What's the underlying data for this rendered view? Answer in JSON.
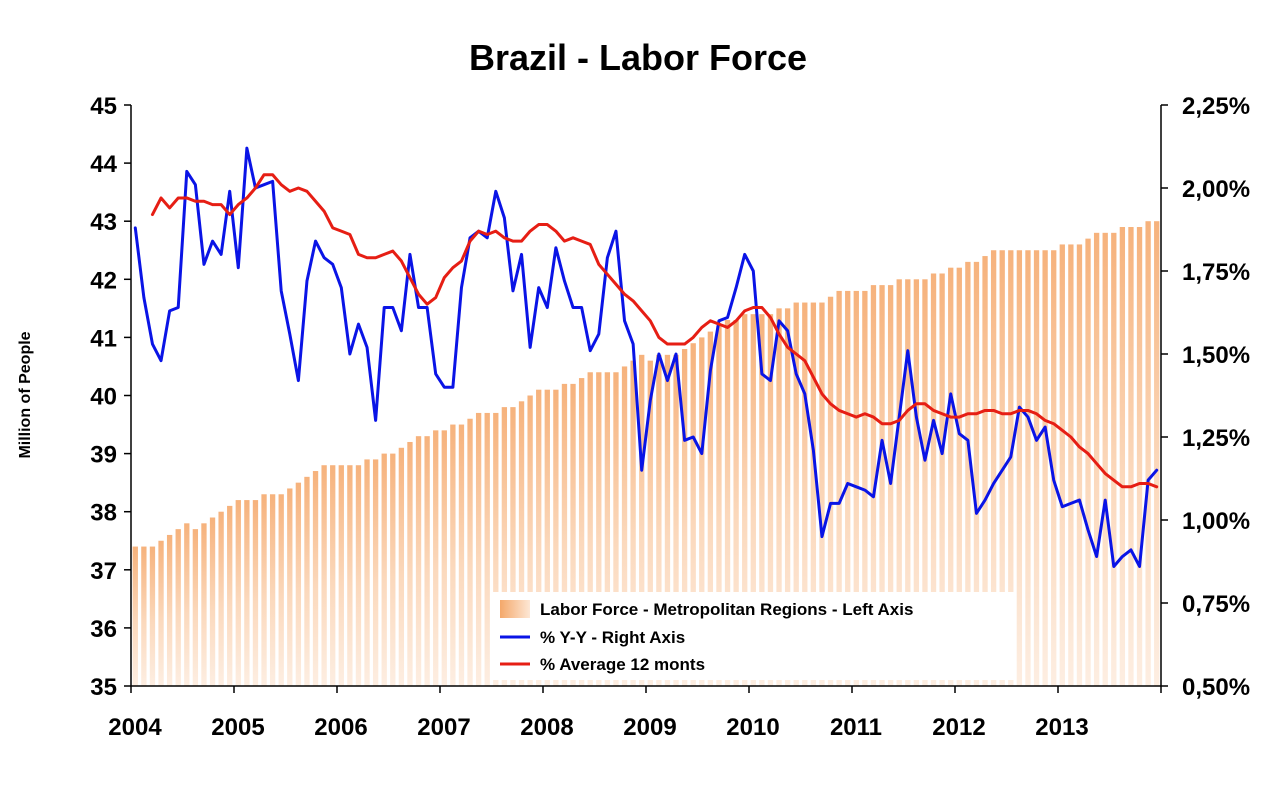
{
  "chart_data": {
    "type": "bar",
    "title": "Brazil - Labor Force",
    "ylabel": "Million of People",
    "xlabel": "",
    "x_tick_labels": [
      "2004",
      "2005",
      "2006",
      "2007",
      "2008",
      "2009",
      "2010",
      "2011",
      "2012",
      "2013"
    ],
    "y_left": {
      "min": 35,
      "max": 45,
      "ticks": [
        "35",
        "36",
        "37",
        "38",
        "39",
        "40",
        "41",
        "42",
        "43",
        "44",
        "45"
      ]
    },
    "y_right": {
      "min": 0.5,
      "max": 2.25,
      "ticks": [
        "0,50%",
        "0,75%",
        "1,00%",
        "1,25%",
        "1,50%",
        "1,75%",
        "2,00%",
        "2,25%"
      ]
    },
    "start": "2004-01",
    "grid": false,
    "legend_position": "bottom-center",
    "series": [
      {
        "name": "Labor Force - Metropolitan Regions - Left Axis",
        "type": "bar",
        "axis": "left",
        "color": "#f5b888",
        "values": [
          37.4,
          37.4,
          37.4,
          37.5,
          37.6,
          37.7,
          37.8,
          37.7,
          37.8,
          37.9,
          38.0,
          38.1,
          38.2,
          38.2,
          38.2,
          38.3,
          38.3,
          38.3,
          38.4,
          38.5,
          38.6,
          38.7,
          38.8,
          38.8,
          38.8,
          38.8,
          38.8,
          38.9,
          38.9,
          39.0,
          39.0,
          39.1,
          39.2,
          39.3,
          39.3,
          39.4,
          39.4,
          39.5,
          39.5,
          39.6,
          39.7,
          39.7,
          39.7,
          39.8,
          39.8,
          39.9,
          40.0,
          40.1,
          40.1,
          40.1,
          40.2,
          40.2,
          40.3,
          40.4,
          40.4,
          40.4,
          40.4,
          40.5,
          40.6,
          40.7,
          40.6,
          40.7,
          40.7,
          40.7,
          40.8,
          40.9,
          41.0,
          41.1,
          41.2,
          41.3,
          41.3,
          41.4,
          41.4,
          41.4,
          41.4,
          41.5,
          41.5,
          41.6,
          41.6,
          41.6,
          41.6,
          41.7,
          41.8,
          41.8,
          41.8,
          41.8,
          41.9,
          41.9,
          41.9,
          42.0,
          42.0,
          42.0,
          42.0,
          42.1,
          42.1,
          42.2,
          42.2,
          42.3,
          42.3,
          42.4,
          42.5,
          42.5,
          42.5,
          42.5,
          42.5,
          42.5,
          42.5,
          42.5,
          42.6,
          42.6,
          42.6,
          42.7,
          42.8,
          42.8,
          42.8,
          42.9,
          42.9,
          42.9,
          43.0,
          43.0
        ]
      },
      {
        "name": "% Y-Y - Right Axis",
        "type": "line",
        "axis": "right",
        "color": "#0a14e6",
        "values": [
          1.88,
          1.67,
          1.53,
          1.48,
          1.63,
          1.64,
          2.05,
          2.01,
          1.77,
          1.84,
          1.8,
          1.99,
          1.76,
          2.12,
          2.0,
          2.01,
          2.02,
          1.69,
          1.56,
          1.42,
          1.72,
          1.84,
          1.79,
          1.77,
          1.7,
          1.5,
          1.59,
          1.52,
          1.3,
          1.64,
          1.64,
          1.57,
          1.8,
          1.64,
          1.64,
          1.44,
          1.4,
          1.4,
          1.7,
          1.85,
          1.87,
          1.85,
          1.99,
          1.91,
          1.69,
          1.8,
          1.52,
          1.7,
          1.64,
          1.82,
          1.72,
          1.64,
          1.64,
          1.51,
          1.56,
          1.79,
          1.87,
          1.6,
          1.53,
          1.15,
          1.36,
          1.5,
          1.42,
          1.5,
          1.24,
          1.25,
          1.2,
          1.45,
          1.6,
          1.61,
          1.7,
          1.8,
          1.75,
          1.44,
          1.42,
          1.6,
          1.57,
          1.44,
          1.38,
          1.21,
          0.95,
          1.05,
          1.05,
          1.11,
          1.1,
          1.09,
          1.07,
          1.24,
          1.11,
          1.31,
          1.51,
          1.31,
          1.18,
          1.3,
          1.2,
          1.38,
          1.26,
          1.24,
          1.02,
          1.06,
          1.11,
          1.15,
          1.19,
          1.34,
          1.31,
          1.24,
          1.28,
          1.12,
          1.04,
          1.05,
          1.06,
          0.97,
          0.89,
          1.06,
          0.86,
          0.89,
          0.91,
          0.86,
          1.12,
          1.15
        ]
      },
      {
        "name": "% Average 12 monts",
        "type": "line",
        "axis": "right",
        "color": "#e61e14",
        "values": [
          null,
          null,
          1.92,
          1.97,
          1.94,
          1.97,
          1.97,
          1.96,
          1.96,
          1.95,
          1.95,
          1.92,
          1.95,
          1.97,
          2.0,
          2.04,
          2.04,
          2.01,
          1.99,
          2.0,
          1.99,
          1.96,
          1.93,
          1.88,
          1.87,
          1.86,
          1.8,
          1.79,
          1.79,
          1.8,
          1.81,
          1.78,
          1.73,
          1.68,
          1.65,
          1.67,
          1.73,
          1.76,
          1.78,
          1.84,
          1.87,
          1.86,
          1.87,
          1.85,
          1.84,
          1.84,
          1.87,
          1.89,
          1.89,
          1.87,
          1.84,
          1.85,
          1.84,
          1.83,
          1.77,
          1.74,
          1.71,
          1.68,
          1.66,
          1.63,
          1.6,
          1.55,
          1.53,
          1.53,
          1.53,
          1.55,
          1.58,
          1.6,
          1.59,
          1.58,
          1.6,
          1.63,
          1.64,
          1.64,
          1.61,
          1.56,
          1.52,
          1.5,
          1.48,
          1.43,
          1.38,
          1.35,
          1.33,
          1.32,
          1.31,
          1.32,
          1.31,
          1.29,
          1.29,
          1.3,
          1.33,
          1.35,
          1.35,
          1.33,
          1.32,
          1.31,
          1.31,
          1.32,
          1.32,
          1.33,
          1.33,
          1.32,
          1.32,
          1.33,
          1.33,
          1.32,
          1.3,
          1.29,
          1.27,
          1.25,
          1.22,
          1.2,
          1.17,
          1.14,
          1.12,
          1.1,
          1.1,
          1.11,
          1.11,
          1.1
        ]
      }
    ]
  }
}
